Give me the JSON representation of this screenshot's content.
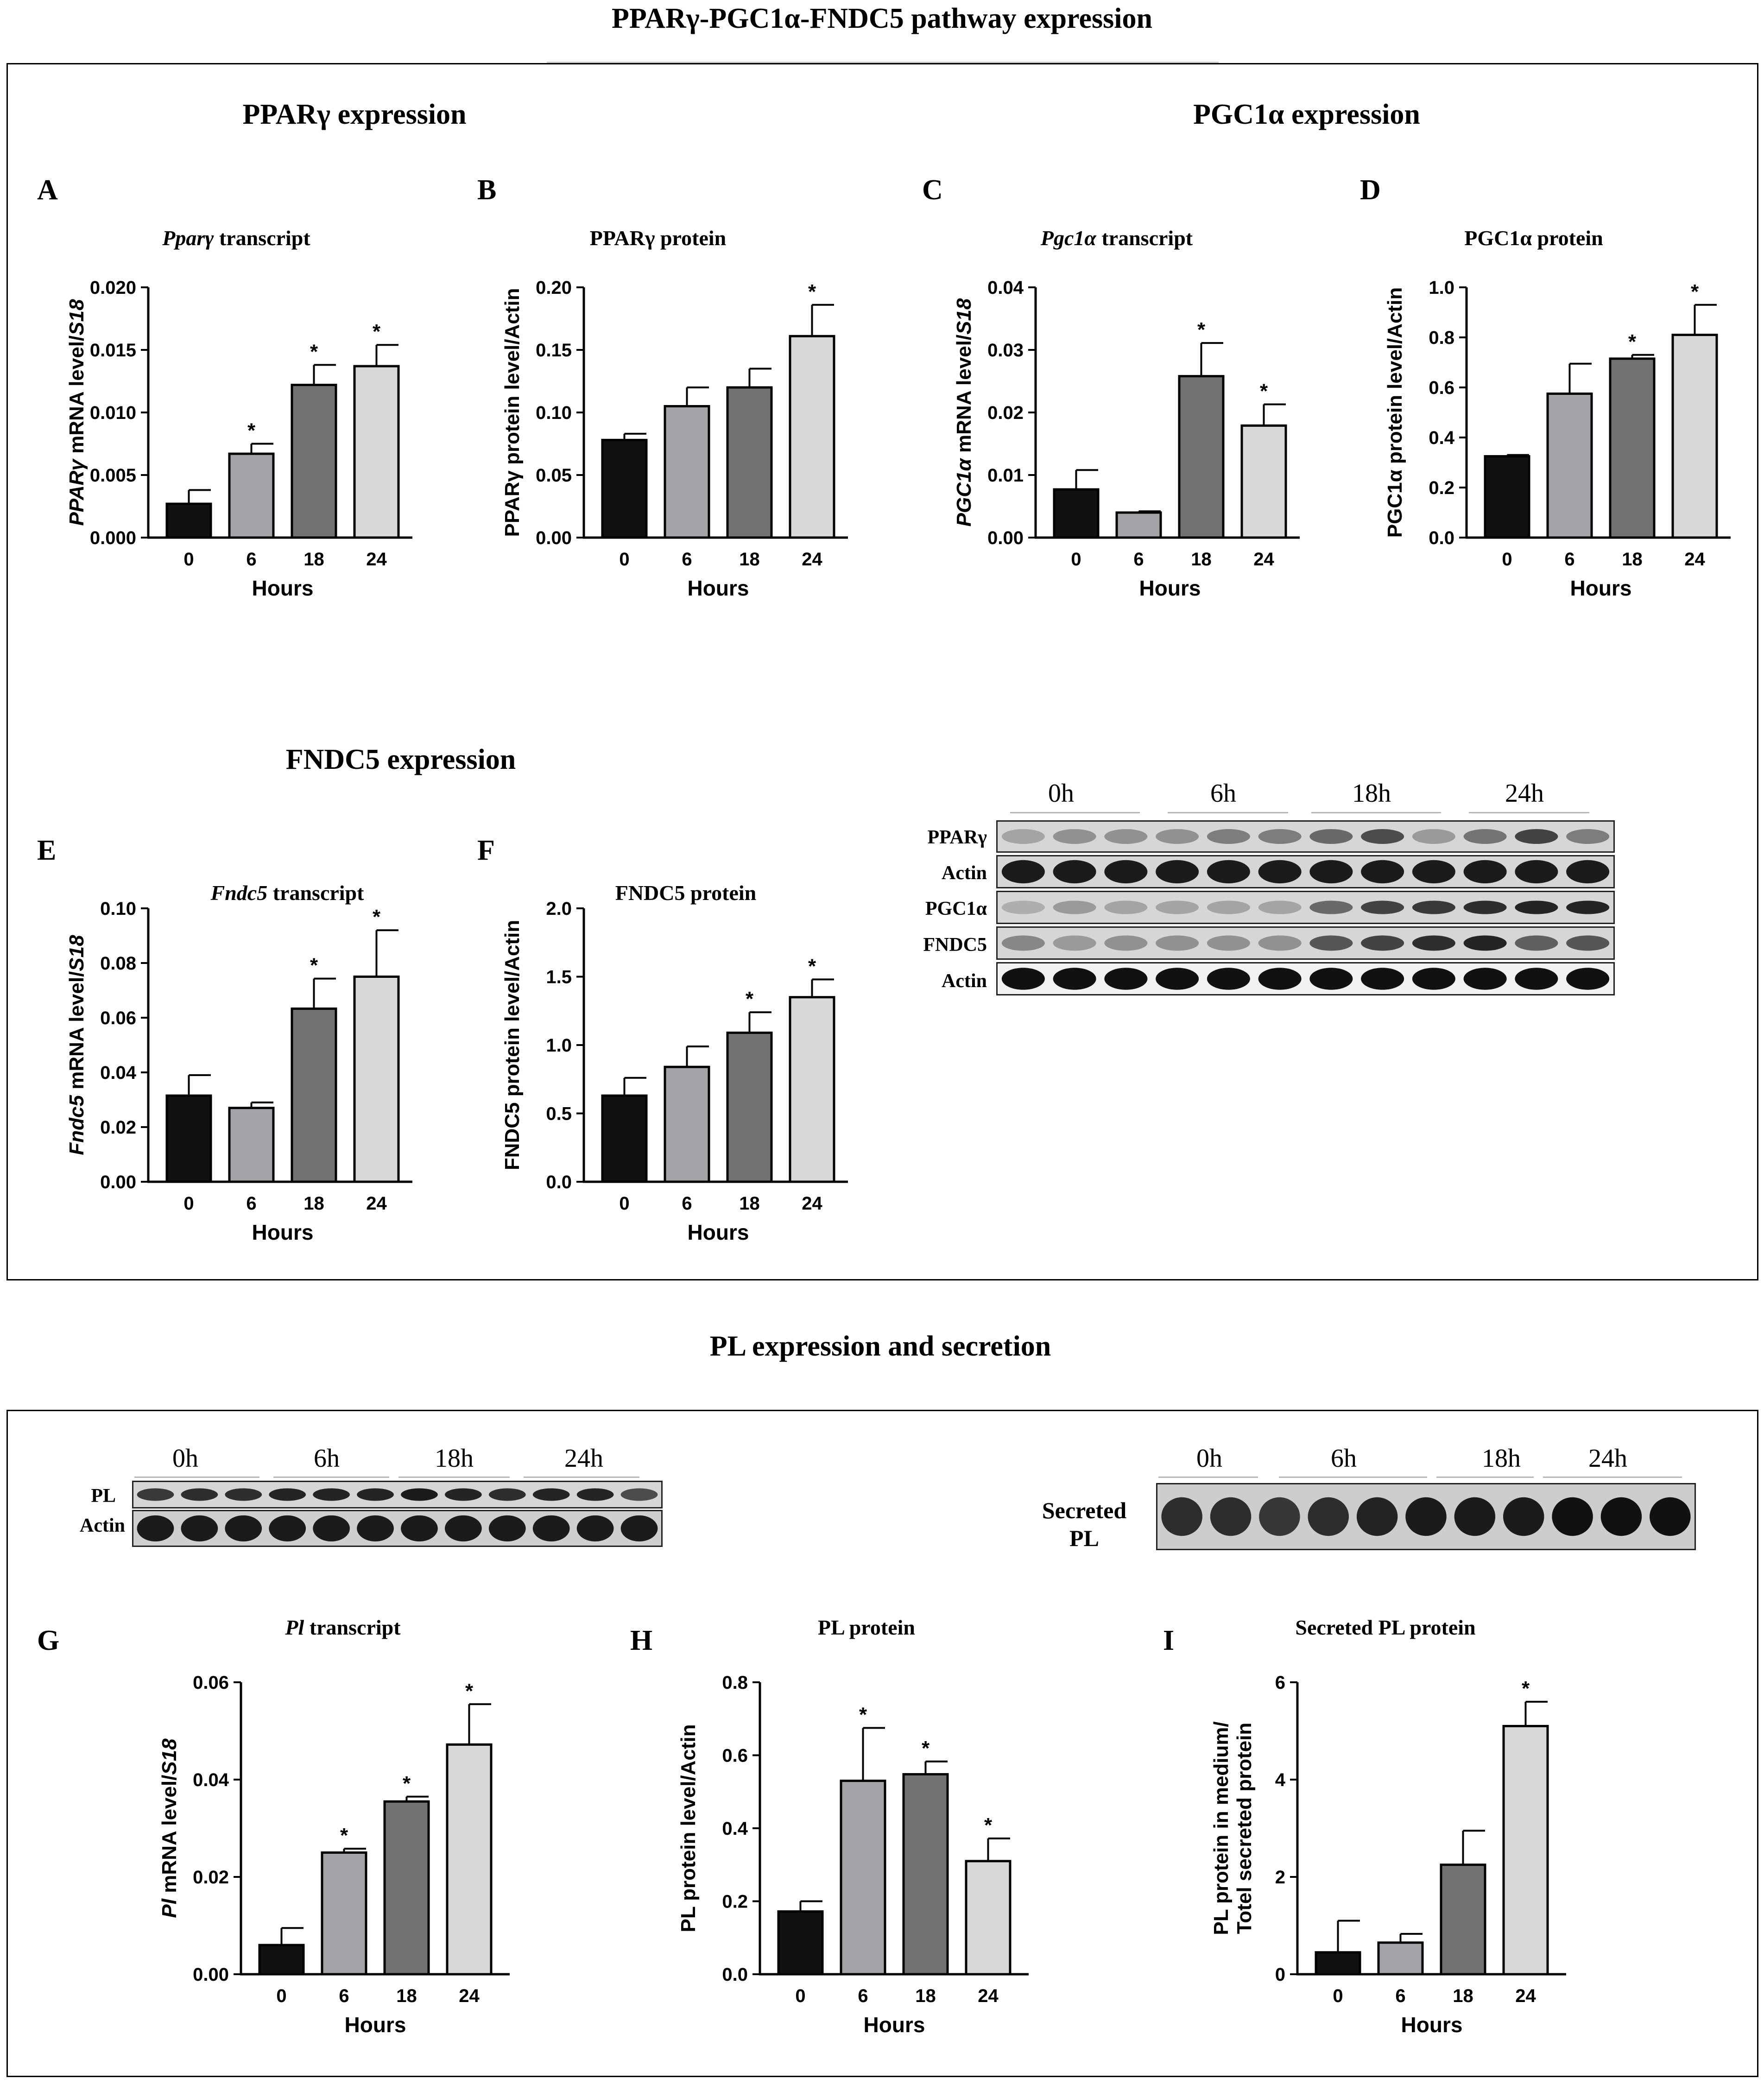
{
  "titles": {
    "main": "PPARγ-PGC1α-FNDC5 pathway expression",
    "ppar_section": "PPARγ expression",
    "pgc_section": "PGC1α expression",
    "fndc_section": "FNDC5 expression",
    "pl_section": "PL expression and secretion"
  },
  "panels": {
    "A": {
      "letter": "A",
      "title_italic": "Pparγ",
      "title_rest": " transcript"
    },
    "B": {
      "letter": "B",
      "title_italic": "",
      "title_rest": "PPARγ protein"
    },
    "C": {
      "letter": "C",
      "title_italic": "Pgc1α",
      "title_rest": " transcript"
    },
    "D": {
      "letter": "D",
      "title_italic": "",
      "title_rest": "PGC1α protein"
    },
    "E": {
      "letter": "E",
      "title_italic": "Fndc5",
      "title_rest": " transcript"
    },
    "F": {
      "letter": "F",
      "title_italic": "",
      "title_rest": "FNDC5 protein"
    },
    "G": {
      "letter": "G",
      "title_italic": "Pl",
      "title_rest": " transcript"
    },
    "H": {
      "letter": "H",
      "title_italic": "",
      "title_rest": "PL protein"
    },
    "I": {
      "letter": "I",
      "title_italic": "",
      "title_rest": "Secreted PL protein"
    }
  },
  "blot1": {
    "lanes": [
      "0h",
      "6h",
      "18h",
      "24h"
    ],
    "rows": [
      "PPARγ",
      "Actin",
      "PGC1α",
      "FNDC5",
      "Actin"
    ]
  },
  "blot2": {
    "lanes": [
      "0h",
      "6h",
      "18h",
      "24h"
    ],
    "rows": [
      "PL",
      "Actin"
    ]
  },
  "blot3": {
    "lanes": [
      "0h",
      "6h",
      "18h",
      "24h"
    ],
    "label_line1": "Secreted",
    "label_line2": "PL"
  },
  "colors": {
    "bars": [
      "#111111",
      "#a4a4a8",
      "#727272",
      "#d8d8d8"
    ]
  },
  "chart_data": [
    {
      "id": "A",
      "type": "bar",
      "categories": [
        "0",
        "6",
        "18",
        "24"
      ],
      "values": [
        0.0027,
        0.0067,
        0.0122,
        0.0137
      ],
      "errors": [
        0.0011,
        0.0008,
        0.0016,
        0.0017
      ],
      "sig": [
        false,
        true,
        true,
        true
      ],
      "xlabel": "Hours",
      "ylabel_parts": [
        [
          "PPARγ",
          true
        ],
        [
          " mRNA level/",
          false
        ],
        [
          "S18",
          true
        ]
      ],
      "ylim": [
        0,
        0.02
      ],
      "ticks": [
        "0.000",
        "0.005",
        "0.010",
        "0.015",
        "0.020"
      ]
    },
    {
      "id": "B",
      "type": "bar",
      "categories": [
        "0",
        "6",
        "18",
        "24"
      ],
      "values": [
        0.078,
        0.105,
        0.12,
        0.161
      ],
      "errors": [
        0.005,
        0.015,
        0.015,
        0.025
      ],
      "sig": [
        false,
        false,
        false,
        true
      ],
      "xlabel": "Hours",
      "ylabel_parts": [
        [
          "PPARγ protein level/Actin",
          false
        ]
      ],
      "ylim": [
        0,
        0.2
      ],
      "ticks": [
        "0.00",
        "0.05",
        "0.10",
        "0.15",
        "0.20"
      ]
    },
    {
      "id": "C",
      "type": "bar",
      "categories": [
        "0",
        "6",
        "18",
        "24"
      ],
      "values": [
        0.0077,
        0.004,
        0.0258,
        0.0179
      ],
      "errors": [
        0.0031,
        0.0002,
        0.0053,
        0.0034
      ],
      "sig": [
        false,
        false,
        true,
        true
      ],
      "xlabel": "Hours",
      "ylabel_parts": [
        [
          "PGC1α",
          true
        ],
        [
          " mRNA level/",
          false
        ],
        [
          "S18",
          true
        ]
      ],
      "ylim": [
        0,
        0.04
      ],
      "ticks": [
        "0.00",
        "0.01",
        "0.02",
        "0.03",
        "0.04"
      ]
    },
    {
      "id": "D",
      "type": "bar",
      "categories": [
        "0",
        "6",
        "18",
        "24"
      ],
      "values": [
        0.325,
        0.575,
        0.715,
        0.81
      ],
      "errors": [
        0.005,
        0.12,
        0.015,
        0.12
      ],
      "sig": [
        false,
        false,
        true,
        true
      ],
      "xlabel": "Hours",
      "ylabel_parts": [
        [
          "PGC1α protein level/Actin",
          false
        ]
      ],
      "ylim": [
        0,
        1.0
      ],
      "ticks": [
        "0.0",
        "0.2",
        "0.4",
        "0.6",
        "0.8",
        "1.0"
      ]
    },
    {
      "id": "E",
      "type": "bar",
      "categories": [
        "0",
        "6",
        "18",
        "24"
      ],
      "values": [
        0.0315,
        0.027,
        0.0633,
        0.075
      ],
      "errors": [
        0.0075,
        0.002,
        0.011,
        0.017
      ],
      "sig": [
        false,
        false,
        true,
        true
      ],
      "xlabel": "Hours",
      "ylabel_parts": [
        [
          "Fndc5",
          true
        ],
        [
          " mRNA level/",
          false
        ],
        [
          "S18",
          true
        ]
      ],
      "ylim": [
        0,
        0.1
      ],
      "ticks": [
        "0.00",
        "0.02",
        "0.04",
        "0.06",
        "0.08",
        "0.10"
      ]
    },
    {
      "id": "F",
      "type": "bar",
      "categories": [
        "0",
        "6",
        "18",
        "24"
      ],
      "values": [
        0.63,
        0.84,
        1.09,
        1.35
      ],
      "errors": [
        0.13,
        0.15,
        0.15,
        0.13
      ],
      "sig": [
        false,
        false,
        true,
        true
      ],
      "xlabel": "Hours",
      "ylabel_parts": [
        [
          "FNDC5 protein level/Actin",
          false
        ]
      ],
      "ylim": [
        0,
        2.0
      ],
      "ticks": [
        "0.0",
        "0.5",
        "1.0",
        "1.5",
        "2.0"
      ]
    },
    {
      "id": "G",
      "type": "bar",
      "categories": [
        "0",
        "6",
        "18",
        "24"
      ],
      "values": [
        0.006,
        0.025,
        0.0355,
        0.0472
      ],
      "errors": [
        0.0035,
        0.0008,
        0.001,
        0.0083
      ],
      "sig": [
        false,
        true,
        true,
        true
      ],
      "xlabel": "Hours",
      "ylabel_parts": [
        [
          "Pl",
          true
        ],
        [
          " mRNA level/",
          false
        ],
        [
          "S18",
          true
        ]
      ],
      "ylim": [
        0,
        0.06
      ],
      "ticks": [
        "0.00",
        "0.02",
        "0.04",
        "0.06"
      ]
    },
    {
      "id": "H",
      "type": "bar",
      "categories": [
        "0",
        "6",
        "18",
        "24"
      ],
      "values": [
        0.172,
        0.53,
        0.548,
        0.31
      ],
      "errors": [
        0.028,
        0.145,
        0.035,
        0.062
      ],
      "sig": [
        false,
        true,
        true,
        true
      ],
      "xlabel": "Hours",
      "ylabel_parts": [
        [
          "PL protein level/Actin",
          false
        ]
      ],
      "ylim": [
        0,
        0.8
      ],
      "ticks": [
        "0.0",
        "0.2",
        "0.4",
        "0.6",
        "0.8"
      ]
    },
    {
      "id": "I",
      "type": "bar",
      "categories": [
        "0",
        "6",
        "18",
        "24"
      ],
      "values": [
        0.45,
        0.65,
        2.25,
        5.1
      ],
      "errors": [
        0.65,
        0.18,
        0.7,
        0.5
      ],
      "sig": [
        false,
        false,
        false,
        true
      ],
      "xlabel": "Hours",
      "ylabel_parts": [
        [
          "PL protein in medium/",
          false
        ]
      ],
      "ylabel2_parts": [
        [
          "Totel secreted protein",
          false
        ]
      ],
      "ylim": [
        0,
        6
      ],
      "ticks": [
        "0",
        "2",
        "4",
        "6"
      ]
    }
  ]
}
